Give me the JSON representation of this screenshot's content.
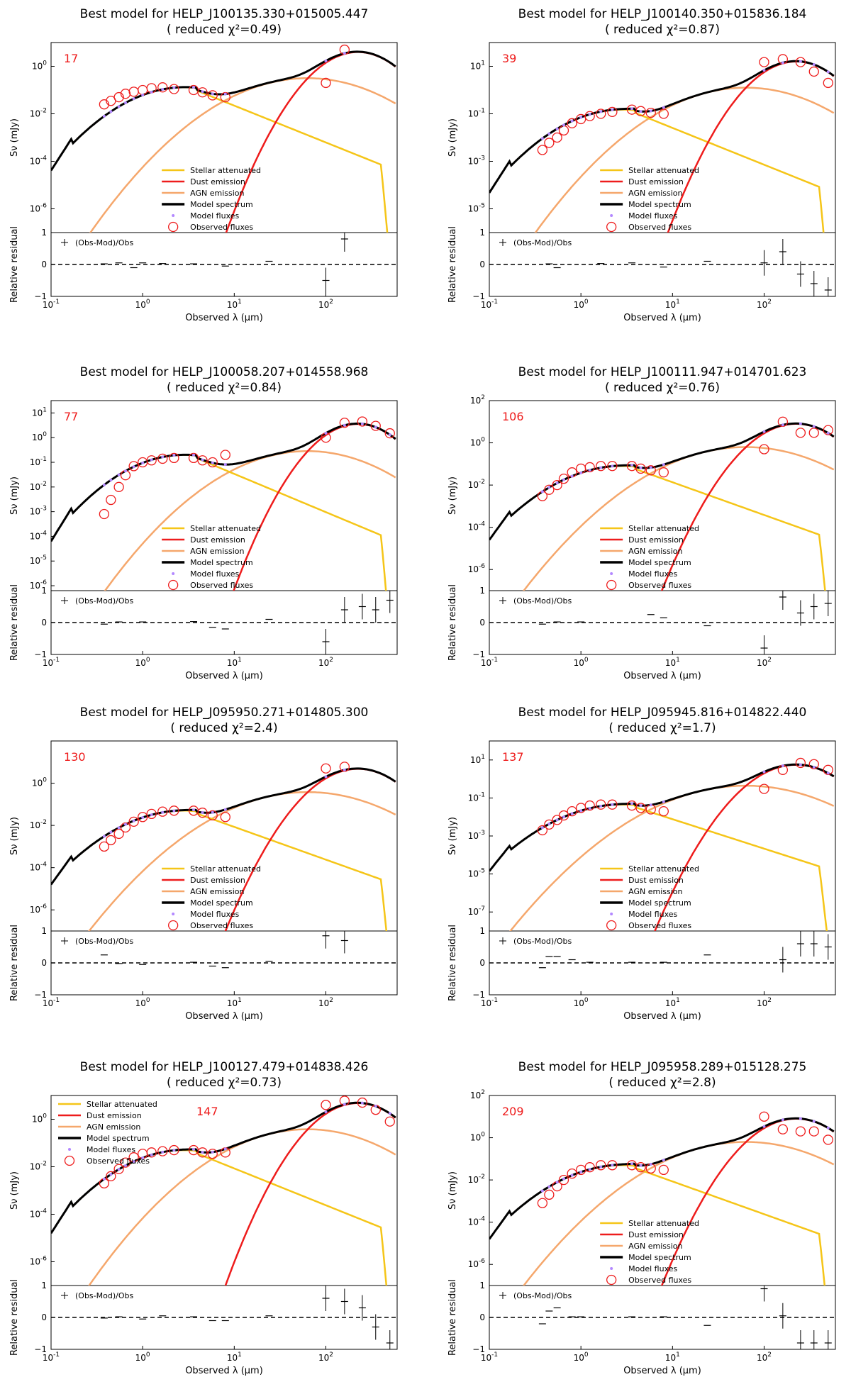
{
  "series_names": [
    "Stellar attenuated",
    "Dust emission",
    "AGN emission",
    "Model spectrum",
    "Model fluxes",
    "Observed fluxes"
  ],
  "residual_legend": "(Obs-Mod)/Obs",
  "xlabel": "Observed λ (μm)",
  "ylabel": "Sν (mJy)",
  "ylabel_residual": "Relative residual",
  "colors": {
    "stellar": "#f5c518",
    "dust": "#ee1c1c",
    "agn": "#f5a76c",
    "model": "#000000",
    "model_flux": "#b388ff",
    "observed": "#ee1c1c"
  },
  "chart_data": [
    {
      "type": "line",
      "title": "Best model for HELP_J100135.330+015005.447",
      "subtitle": "( reduced χ²=0.49)",
      "label": "17",
      "xlim": [
        0.1,
        600
      ],
      "ylim_exp": [
        -7,
        1
      ],
      "yticks_exp": [
        -6,
        -4,
        -2,
        0
      ],
      "legend_position": "center",
      "observed": [
        [
          0.38,
          0.025
        ],
        [
          0.45,
          0.035
        ],
        [
          0.55,
          0.05
        ],
        [
          0.65,
          0.07
        ],
        [
          0.8,
          0.085
        ],
        [
          1.0,
          0.1
        ],
        [
          1.25,
          0.12
        ],
        [
          1.65,
          0.13
        ],
        [
          2.2,
          0.11
        ],
        [
          3.6,
          0.1
        ],
        [
          4.5,
          0.08
        ],
        [
          5.8,
          0.06
        ],
        [
          8.0,
          0.05
        ],
        [
          100,
          0.2
        ],
        [
          160,
          5.0
        ]
      ],
      "residual": [
        [
          0.38,
          0.02
        ],
        [
          0.55,
          0.05
        ],
        [
          0.8,
          -0.1
        ],
        [
          1.0,
          0.05
        ],
        [
          1.65,
          0.03
        ],
        [
          3.6,
          0.02
        ],
        [
          8.0,
          -0.05
        ],
        [
          24,
          0.1
        ],
        [
          100,
          -0.5
        ],
        [
          160,
          0.8
        ]
      ]
    },
    {
      "type": "line",
      "title": "Best model for HELP_J100140.350+015836.184",
      "subtitle": "( reduced χ²=0.87)",
      "label": "39",
      "xlim": [
        0.1,
        600
      ],
      "ylim_exp": [
        -6,
        2
      ],
      "yticks_exp": [
        -5,
        -3,
        -1,
        1
      ],
      "legend_position": "center",
      "observed": [
        [
          0.38,
          0.003
        ],
        [
          0.45,
          0.006
        ],
        [
          0.55,
          0.01
        ],
        [
          0.65,
          0.02
        ],
        [
          0.8,
          0.04
        ],
        [
          1.0,
          0.06
        ],
        [
          1.25,
          0.08
        ],
        [
          1.65,
          0.1
        ],
        [
          2.2,
          0.12
        ],
        [
          3.6,
          0.15
        ],
        [
          4.5,
          0.13
        ],
        [
          5.8,
          0.11
        ],
        [
          8.0,
          0.1
        ],
        [
          100,
          15
        ],
        [
          160,
          20
        ],
        [
          250,
          15
        ],
        [
          350,
          6
        ],
        [
          500,
          2
        ]
      ],
      "residual": [
        [
          0.45,
          0.02
        ],
        [
          0.55,
          -0.1
        ],
        [
          1.65,
          0.03
        ],
        [
          3.6,
          0.05
        ],
        [
          8.0,
          -0.08
        ],
        [
          24,
          0.1
        ],
        [
          100,
          0.05
        ],
        [
          160,
          0.4
        ],
        [
          250,
          -0.3
        ],
        [
          350,
          -0.6
        ],
        [
          500,
          -0.8
        ]
      ]
    },
    {
      "type": "line",
      "title": "Best model for HELP_J100058.207+014558.968",
      "subtitle": "( reduced χ²=0.84)",
      "label": "77",
      "xlim": [
        0.1,
        600
      ],
      "ylim_exp": [
        -6.2,
        1.5
      ],
      "yticks_exp": [
        -6,
        -5,
        -4,
        -3,
        -2,
        -1,
        0,
        1
      ],
      "legend_position": "center",
      "observed": [
        [
          0.38,
          0.0008
        ],
        [
          0.45,
          0.003
        ],
        [
          0.55,
          0.01
        ],
        [
          0.65,
          0.03
        ],
        [
          0.8,
          0.07
        ],
        [
          1.0,
          0.1
        ],
        [
          1.25,
          0.12
        ],
        [
          1.65,
          0.14
        ],
        [
          2.2,
          0.15
        ],
        [
          3.6,
          0.15
        ],
        [
          4.5,
          0.12
        ],
        [
          5.8,
          0.1
        ],
        [
          8.0,
          0.2
        ],
        [
          100,
          1.0
        ],
        [
          160,
          4.0
        ],
        [
          250,
          4.5
        ],
        [
          350,
          3.0
        ],
        [
          500,
          1.5
        ]
      ],
      "residual": [
        [
          0.38,
          -0.05
        ],
        [
          0.55,
          0.02
        ],
        [
          1.0,
          0.02
        ],
        [
          3.6,
          0.03
        ],
        [
          5.8,
          -0.15
        ],
        [
          8.0,
          -0.2
        ],
        [
          24,
          0.1
        ],
        [
          100,
          -0.6
        ],
        [
          160,
          0.4
        ],
        [
          250,
          0.5
        ],
        [
          350,
          0.4
        ],
        [
          500,
          0.7
        ]
      ]
    },
    {
      "type": "line",
      "title": "Best model for HELP_J100111.947+014701.623",
      "subtitle": "( reduced χ²=0.76)",
      "label": "106",
      "xlim": [
        0.1,
        600
      ],
      "ylim_exp": [
        -7,
        2
      ],
      "yticks_exp": [
        -6,
        -4,
        -2,
        0,
        2
      ],
      "legend_position": "center",
      "observed": [
        [
          0.38,
          0.003
        ],
        [
          0.45,
          0.006
        ],
        [
          0.55,
          0.01
        ],
        [
          0.65,
          0.02
        ],
        [
          0.8,
          0.04
        ],
        [
          1.0,
          0.06
        ],
        [
          1.25,
          0.07
        ],
        [
          1.65,
          0.08
        ],
        [
          2.2,
          0.08
        ],
        [
          3.6,
          0.08
        ],
        [
          4.5,
          0.06
        ],
        [
          5.8,
          0.05
        ],
        [
          8.0,
          0.04
        ],
        [
          100,
          0.5
        ],
        [
          160,
          10
        ],
        [
          250,
          3
        ],
        [
          350,
          3
        ],
        [
          500,
          4
        ]
      ],
      "residual": [
        [
          0.38,
          -0.05
        ],
        [
          0.55,
          0.02
        ],
        [
          1.0,
          0.02
        ],
        [
          5.8,
          0.25
        ],
        [
          8.0,
          0.15
        ],
        [
          24,
          -0.1
        ],
        [
          100,
          -0.8
        ],
        [
          160,
          0.8
        ],
        [
          250,
          0.3
        ],
        [
          350,
          0.5
        ],
        [
          500,
          0.6
        ]
      ]
    },
    {
      "type": "line",
      "title": "Best model for HELP_J095950.271+014805.300",
      "subtitle": "( reduced χ²=2.4)",
      "label": "130",
      "xlim": [
        0.1,
        600
      ],
      "ylim_exp": [
        -7,
        2
      ],
      "yticks_exp": [
        -6,
        -4,
        -2,
        0
      ],
      "legend_position": "center",
      "observed": [
        [
          0.38,
          0.001
        ],
        [
          0.45,
          0.002
        ],
        [
          0.55,
          0.004
        ],
        [
          0.65,
          0.008
        ],
        [
          0.8,
          0.015
        ],
        [
          1.0,
          0.025
        ],
        [
          1.25,
          0.035
        ],
        [
          1.65,
          0.045
        ],
        [
          2.2,
          0.05
        ],
        [
          3.6,
          0.05
        ],
        [
          4.5,
          0.04
        ],
        [
          5.8,
          0.03
        ],
        [
          8.0,
          0.025
        ],
        [
          100,
          5.0
        ],
        [
          160,
          6.0
        ]
      ],
      "residual": [
        [
          0.38,
          0.25
        ],
        [
          0.55,
          -0.02
        ],
        [
          1.0,
          -0.05
        ],
        [
          3.6,
          0.02
        ],
        [
          5.8,
          -0.1
        ],
        [
          8.0,
          -0.15
        ],
        [
          24,
          0.05
        ],
        [
          100,
          0.85
        ],
        [
          160,
          0.7
        ]
      ]
    },
    {
      "type": "line",
      "title": "Best model for HELP_J095945.816+014822.440",
      "subtitle": "( reduced χ²=1.7)",
      "label": "137",
      "xlim": [
        0.1,
        600
      ],
      "ylim_exp": [
        -8,
        2
      ],
      "yticks_exp": [
        -7,
        -5,
        -3,
        -1,
        1
      ],
      "legend_position": "center",
      "observed": [
        [
          0.38,
          0.002
        ],
        [
          0.45,
          0.004
        ],
        [
          0.55,
          0.007
        ],
        [
          0.65,
          0.012
        ],
        [
          0.8,
          0.02
        ],
        [
          1.0,
          0.03
        ],
        [
          1.25,
          0.04
        ],
        [
          1.65,
          0.045
        ],
        [
          2.2,
          0.045
        ],
        [
          3.6,
          0.04
        ],
        [
          4.5,
          0.03
        ],
        [
          5.8,
          0.025
        ],
        [
          8.0,
          0.02
        ],
        [
          100,
          0.3
        ],
        [
          160,
          3.0
        ],
        [
          250,
          7
        ],
        [
          350,
          6
        ],
        [
          500,
          3
        ]
      ],
      "residual": [
        [
          0.38,
          -0.15
        ],
        [
          0.45,
          0.2
        ],
        [
          0.55,
          0.2
        ],
        [
          0.8,
          0.1
        ],
        [
          1.25,
          0.02
        ],
        [
          3.6,
          0.02
        ],
        [
          8.0,
          0.02
        ],
        [
          24,
          0.25
        ],
        [
          160,
          0.1
        ],
        [
          250,
          0.6
        ],
        [
          350,
          0.6
        ],
        [
          500,
          0.5
        ]
      ]
    },
    {
      "type": "line",
      "title": "Best model for HELP_J100127.479+014838.426",
      "subtitle": "( reduced χ²=0.73)",
      "label": "147",
      "xlim": [
        0.1,
        600
      ],
      "ylim_exp": [
        -7,
        1
      ],
      "yticks_exp": [
        -6,
        -4,
        -2,
        0
      ],
      "legend_position": "top-left",
      "observed": [
        [
          0.38,
          0.002
        ],
        [
          0.45,
          0.004
        ],
        [
          0.55,
          0.008
        ],
        [
          0.65,
          0.015
        ],
        [
          0.8,
          0.025
        ],
        [
          1.0,
          0.035
        ],
        [
          1.25,
          0.04
        ],
        [
          1.65,
          0.045
        ],
        [
          2.2,
          0.05
        ],
        [
          3.6,
          0.05
        ],
        [
          4.5,
          0.04
        ],
        [
          5.8,
          0.035
        ],
        [
          8.0,
          0.04
        ],
        [
          100,
          4.0
        ],
        [
          160,
          6.0
        ],
        [
          250,
          5.0
        ],
        [
          350,
          2.5
        ],
        [
          500,
          0.8
        ]
      ],
      "residual": [
        [
          0.38,
          -0.02
        ],
        [
          0.55,
          0.02
        ],
        [
          1.0,
          -0.05
        ],
        [
          1.65,
          0.05
        ],
        [
          3.6,
          0.02
        ],
        [
          5.8,
          -0.1
        ],
        [
          8.0,
          -0.1
        ],
        [
          24,
          0.05
        ],
        [
          100,
          0.6
        ],
        [
          160,
          0.5
        ],
        [
          250,
          0.3
        ],
        [
          350,
          -0.3
        ],
        [
          500,
          -0.8
        ]
      ]
    },
    {
      "type": "line",
      "title": "Best model for HELP_J095958.289+015128.275",
      "subtitle": "( reduced χ²=2.8)",
      "label": "209",
      "xlim": [
        0.1,
        600
      ],
      "ylim_exp": [
        -7,
        2
      ],
      "yticks_exp": [
        -6,
        -4,
        -2,
        0,
        2
      ],
      "legend_position": "center",
      "observed": [
        [
          0.38,
          0.0008
        ],
        [
          0.45,
          0.002
        ],
        [
          0.55,
          0.005
        ],
        [
          0.65,
          0.01
        ],
        [
          0.8,
          0.02
        ],
        [
          1.0,
          0.03
        ],
        [
          1.25,
          0.04
        ],
        [
          1.65,
          0.05
        ],
        [
          2.2,
          0.05
        ],
        [
          3.6,
          0.05
        ],
        [
          4.5,
          0.04
        ],
        [
          5.8,
          0.035
        ],
        [
          8.0,
          0.03
        ],
        [
          100,
          10
        ],
        [
          160,
          2.5
        ],
        [
          250,
          2.0
        ],
        [
          350,
          2.0
        ],
        [
          500,
          0.8
        ]
      ],
      "residual": [
        [
          0.38,
          -0.2
        ],
        [
          0.45,
          0.2
        ],
        [
          0.55,
          0.3
        ],
        [
          0.8,
          0.02
        ],
        [
          1.0,
          0.02
        ],
        [
          3.6,
          0.02
        ],
        [
          8.0,
          0.02
        ],
        [
          24,
          -0.25
        ],
        [
          100,
          0.9
        ],
        [
          160,
          0.05
        ],
        [
          250,
          -0.8
        ],
        [
          350,
          -0.8
        ],
        [
          500,
          -0.8
        ]
      ]
    }
  ]
}
